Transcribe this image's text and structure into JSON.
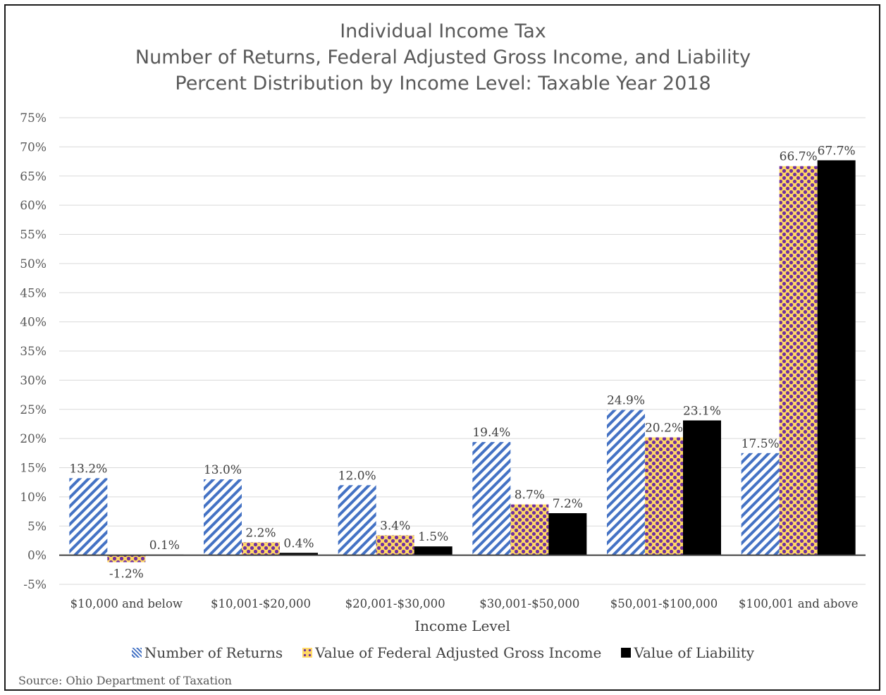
{
  "chart_data": {
    "type": "bar",
    "title_lines": [
      "Individual Income Tax",
      "Number of Returns, Federal Adjusted Gross Income, and Liability",
      "Percent Distribution by Income Level: Taxable Year 2018"
    ],
    "xlabel": "Income Level",
    "ylabel": "",
    "ylim": [
      -5,
      75
    ],
    "ytick_step": 5,
    "y_tick_suffix": "%",
    "grid": true,
    "legend_position": "bottom",
    "categories": [
      "$10,000 and below",
      "$10,001-$20,000",
      "$20,001-$30,000",
      "$30,001-$50,000",
      "$50,001-$100,000",
      "$100,001 and above"
    ],
    "series": [
      {
        "name": "Number of Returns",
        "values": [
          13.2,
          13.0,
          12.0,
          19.4,
          24.9,
          17.5
        ],
        "labels": [
          "13.2%",
          "13.0%",
          "12.0%",
          "19.4%",
          "24.9%",
          "17.5%"
        ],
        "color": "#4472c4",
        "pattern": "diagonal-stripes"
      },
      {
        "name": "Value of Federal Adjusted Gross Income",
        "values": [
          -1.2,
          2.2,
          3.4,
          8.7,
          20.2,
          66.7
        ],
        "labels": [
          "-1.2%",
          "2.2%",
          "3.4%",
          "8.7%",
          "20.2%",
          "66.7%"
        ],
        "color": "#7030a0",
        "background_color": "#ffd966",
        "pattern": "dots"
      },
      {
        "name": "Value of Liability",
        "values": [
          0.1,
          0.4,
          1.5,
          7.2,
          23.1,
          67.7
        ],
        "labels": [
          "0.1%",
          "0.4%",
          "1.5%",
          "7.2%",
          "23.1%",
          "67.7%"
        ],
        "color": "#000000",
        "pattern": "solid"
      }
    ],
    "source": "Source: Ohio Department of Taxation"
  }
}
